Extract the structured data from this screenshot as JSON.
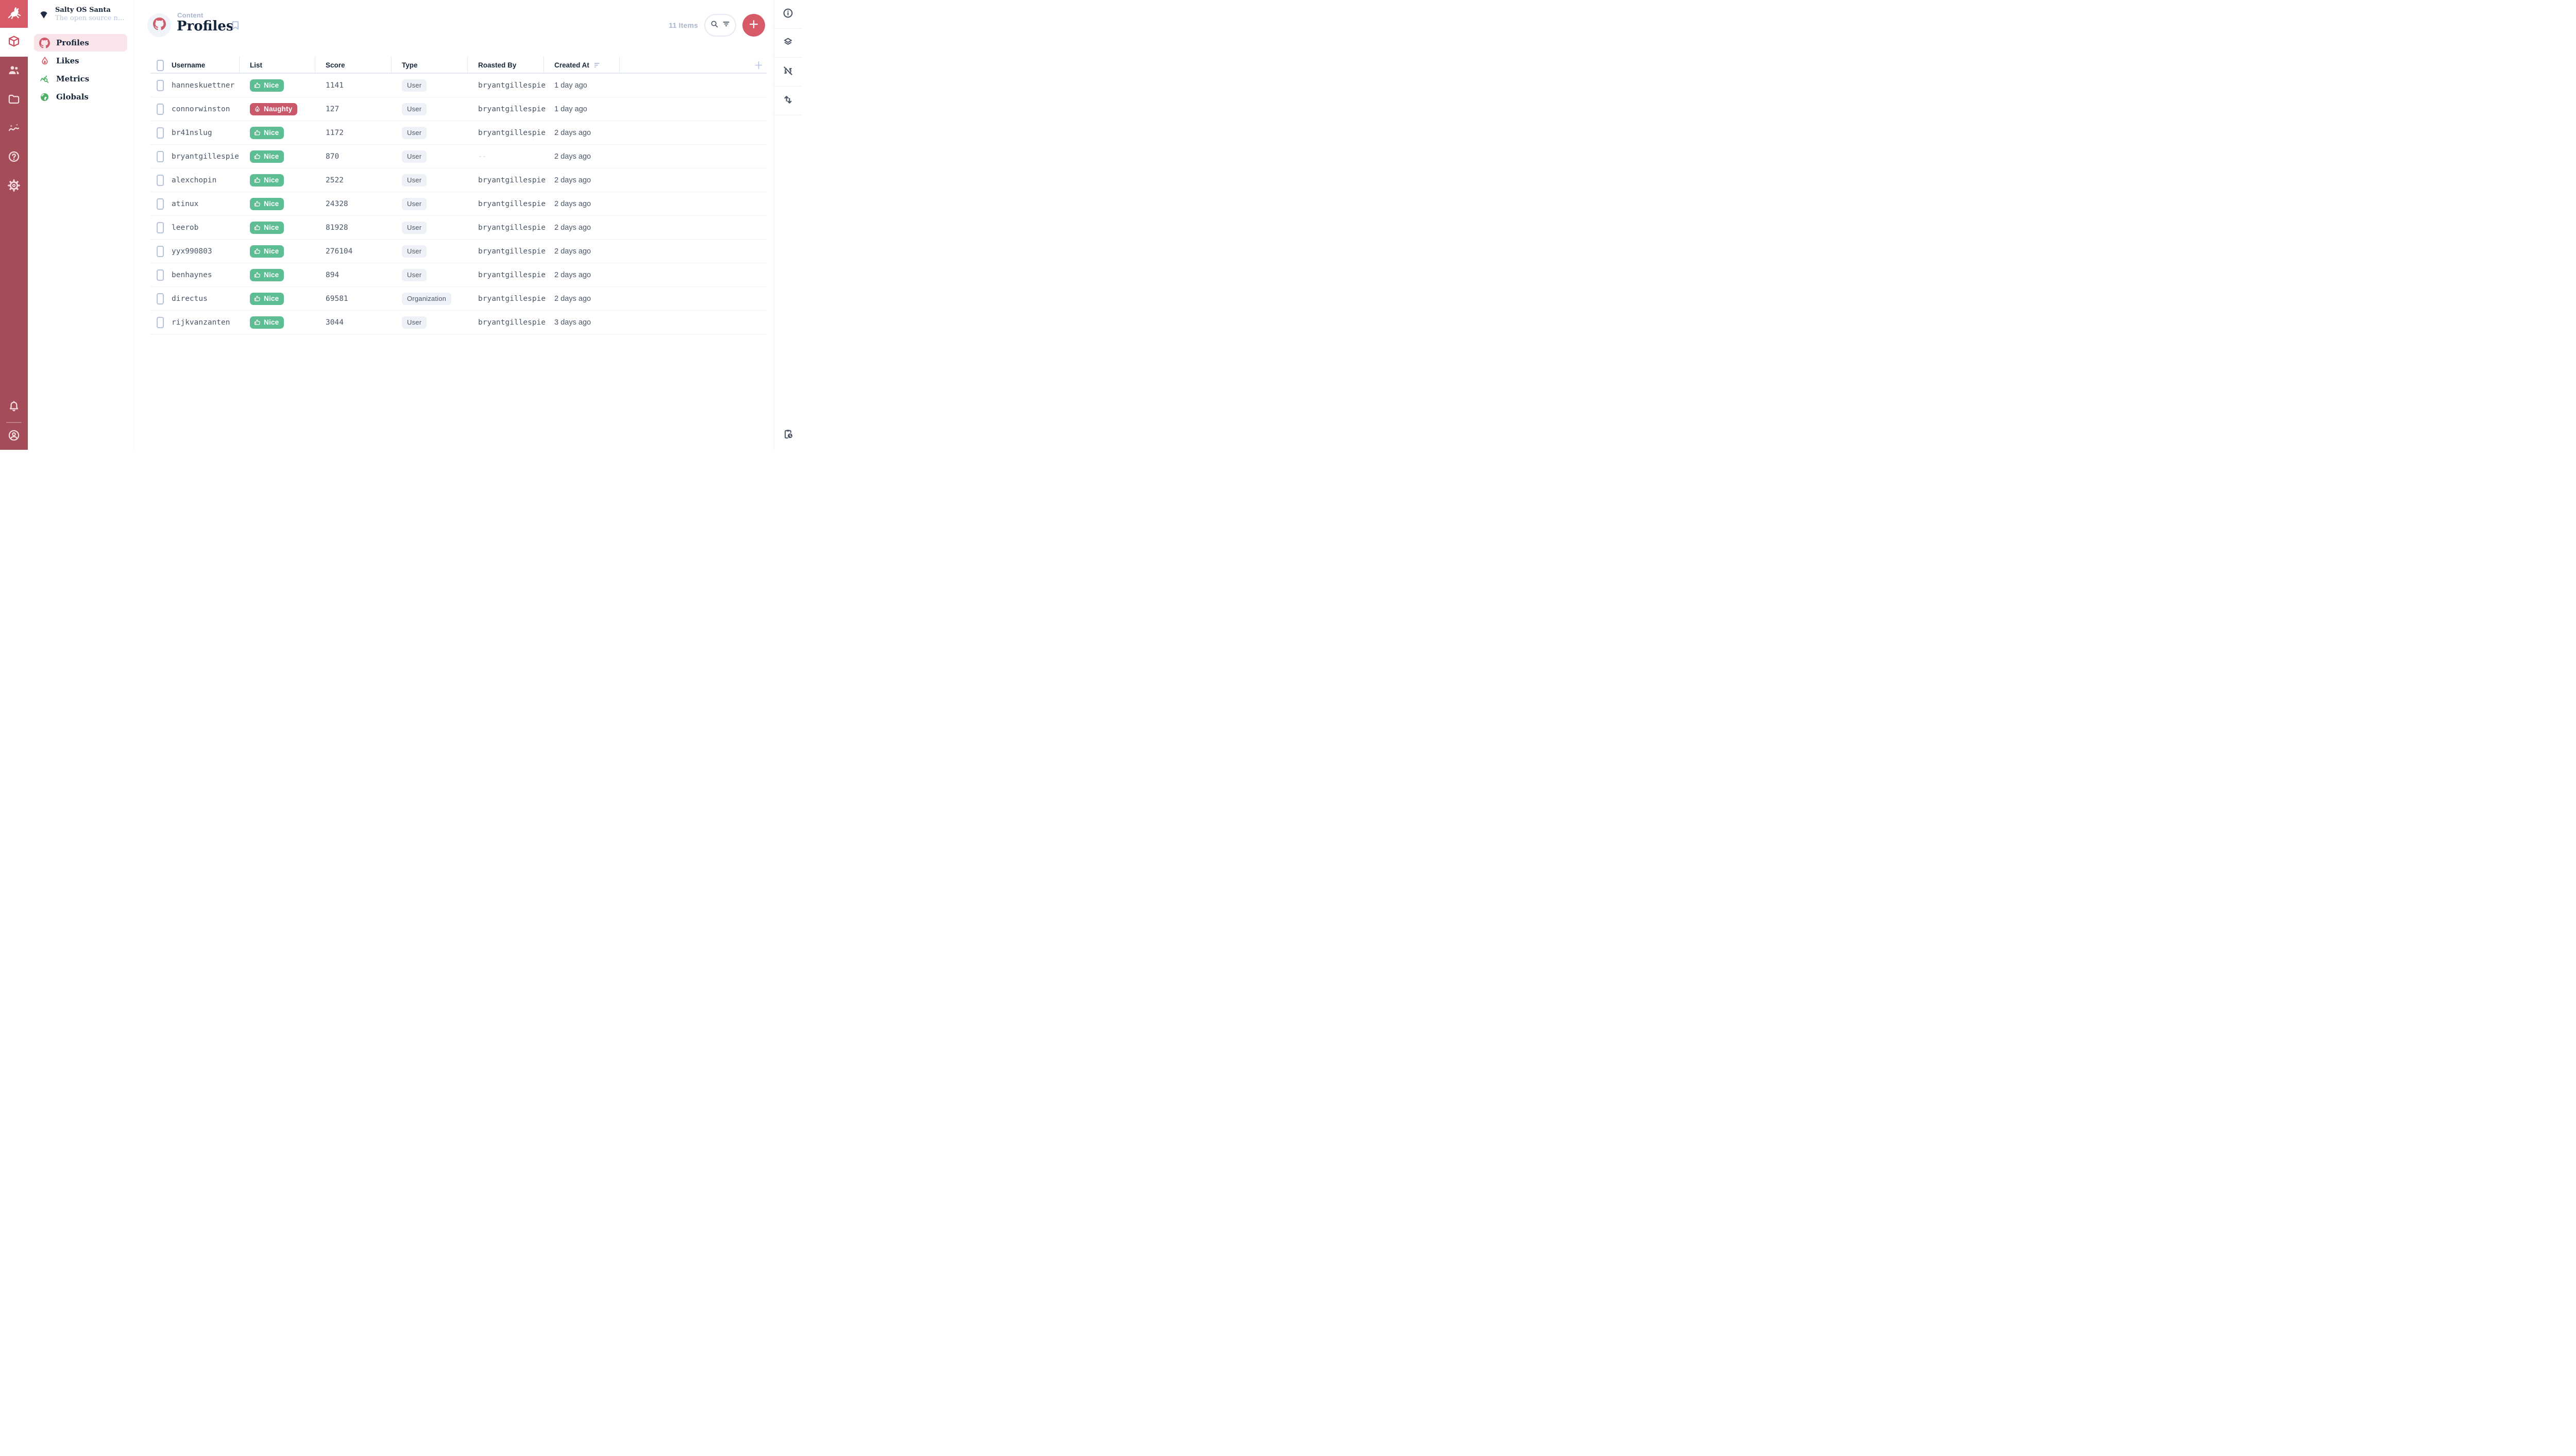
{
  "colors": {
    "brand": "#D75A68",
    "module_bar": "#A44D59",
    "green": "#5DBE94",
    "red": "#C9586B",
    "navy": "#18263A",
    "muted": "#A9B6CC",
    "periwinkle": "#B6C3DC",
    "border": "#E4EAF1",
    "chip_bg": "#EEF2F8",
    "nav_active_bg": "#F9E5E9"
  },
  "project": {
    "name": "Salty OS Santa",
    "subtitle": "The open source naug..."
  },
  "module_bar": {
    "modules": [
      "content-module",
      "users-module",
      "files-module",
      "insights-module",
      "help-module",
      "settings-module"
    ],
    "active_module": "content-module"
  },
  "nav": {
    "items": [
      {
        "label": "Profiles",
        "icon": "github-octocat-icon",
        "active": true
      },
      {
        "label": "Likes",
        "icon": "flame-icon",
        "active": false
      },
      {
        "label": "Metrics",
        "icon": "query-stats-icon",
        "active": false
      },
      {
        "label": "Globals",
        "icon": "globe-icon",
        "active": false
      }
    ]
  },
  "header": {
    "breadcrumb": "Content",
    "title": "Profiles",
    "items_count": "11 Items"
  },
  "table": {
    "columns": [
      "Username",
      "List",
      "Score",
      "Type",
      "Roasted By",
      "Created At"
    ],
    "sorted_column": "Created At",
    "rows": [
      {
        "username": "hanneskuettner",
        "list": {
          "label": "Nice",
          "variant": "nice"
        },
        "score": "1141",
        "type": "User",
        "roasted_by": "bryantgillespie",
        "created_at": "1 day ago"
      },
      {
        "username": "connorwinston",
        "list": {
          "label": "Naughty",
          "variant": "naughty"
        },
        "score": "127",
        "type": "User",
        "roasted_by": "bryantgillespie",
        "created_at": "1 day ago"
      },
      {
        "username": "br41nslug",
        "list": {
          "label": "Nice",
          "variant": "nice"
        },
        "score": "1172",
        "type": "User",
        "roasted_by": "bryantgillespie",
        "created_at": "2 days ago"
      },
      {
        "username": "bryantgillespie",
        "list": {
          "label": "Nice",
          "variant": "nice"
        },
        "score": "870",
        "type": "User",
        "roasted_by": "--",
        "created_at": "2 days ago"
      },
      {
        "username": "alexchopin",
        "list": {
          "label": "Nice",
          "variant": "nice"
        },
        "score": "2522",
        "type": "User",
        "roasted_by": "bryantgillespie",
        "created_at": "2 days ago"
      },
      {
        "username": "atinux",
        "list": {
          "label": "Nice",
          "variant": "nice"
        },
        "score": "24328",
        "type": "User",
        "roasted_by": "bryantgillespie",
        "created_at": "2 days ago"
      },
      {
        "username": "leerob",
        "list": {
          "label": "Nice",
          "variant": "nice"
        },
        "score": "81928",
        "type": "User",
        "roasted_by": "bryantgillespie",
        "created_at": "2 days ago"
      },
      {
        "username": "yyx990803",
        "list": {
          "label": "Nice",
          "variant": "nice"
        },
        "score": "276104",
        "type": "User",
        "roasted_by": "bryantgillespie",
        "created_at": "2 days ago"
      },
      {
        "username": "benhaynes",
        "list": {
          "label": "Nice",
          "variant": "nice"
        },
        "score": "894",
        "type": "User",
        "roasted_by": "bryantgillespie",
        "created_at": "2 days ago"
      },
      {
        "username": "directus",
        "list": {
          "label": "Nice",
          "variant": "nice"
        },
        "score": "69581",
        "type": "Organization",
        "roasted_by": "bryantgillespie",
        "created_at": "2 days ago"
      },
      {
        "username": "rijkvanzanten",
        "list": {
          "label": "Nice",
          "variant": "nice"
        },
        "score": "3044",
        "type": "User",
        "roasted_by": "bryantgillespie",
        "created_at": "3 days ago"
      }
    ]
  }
}
